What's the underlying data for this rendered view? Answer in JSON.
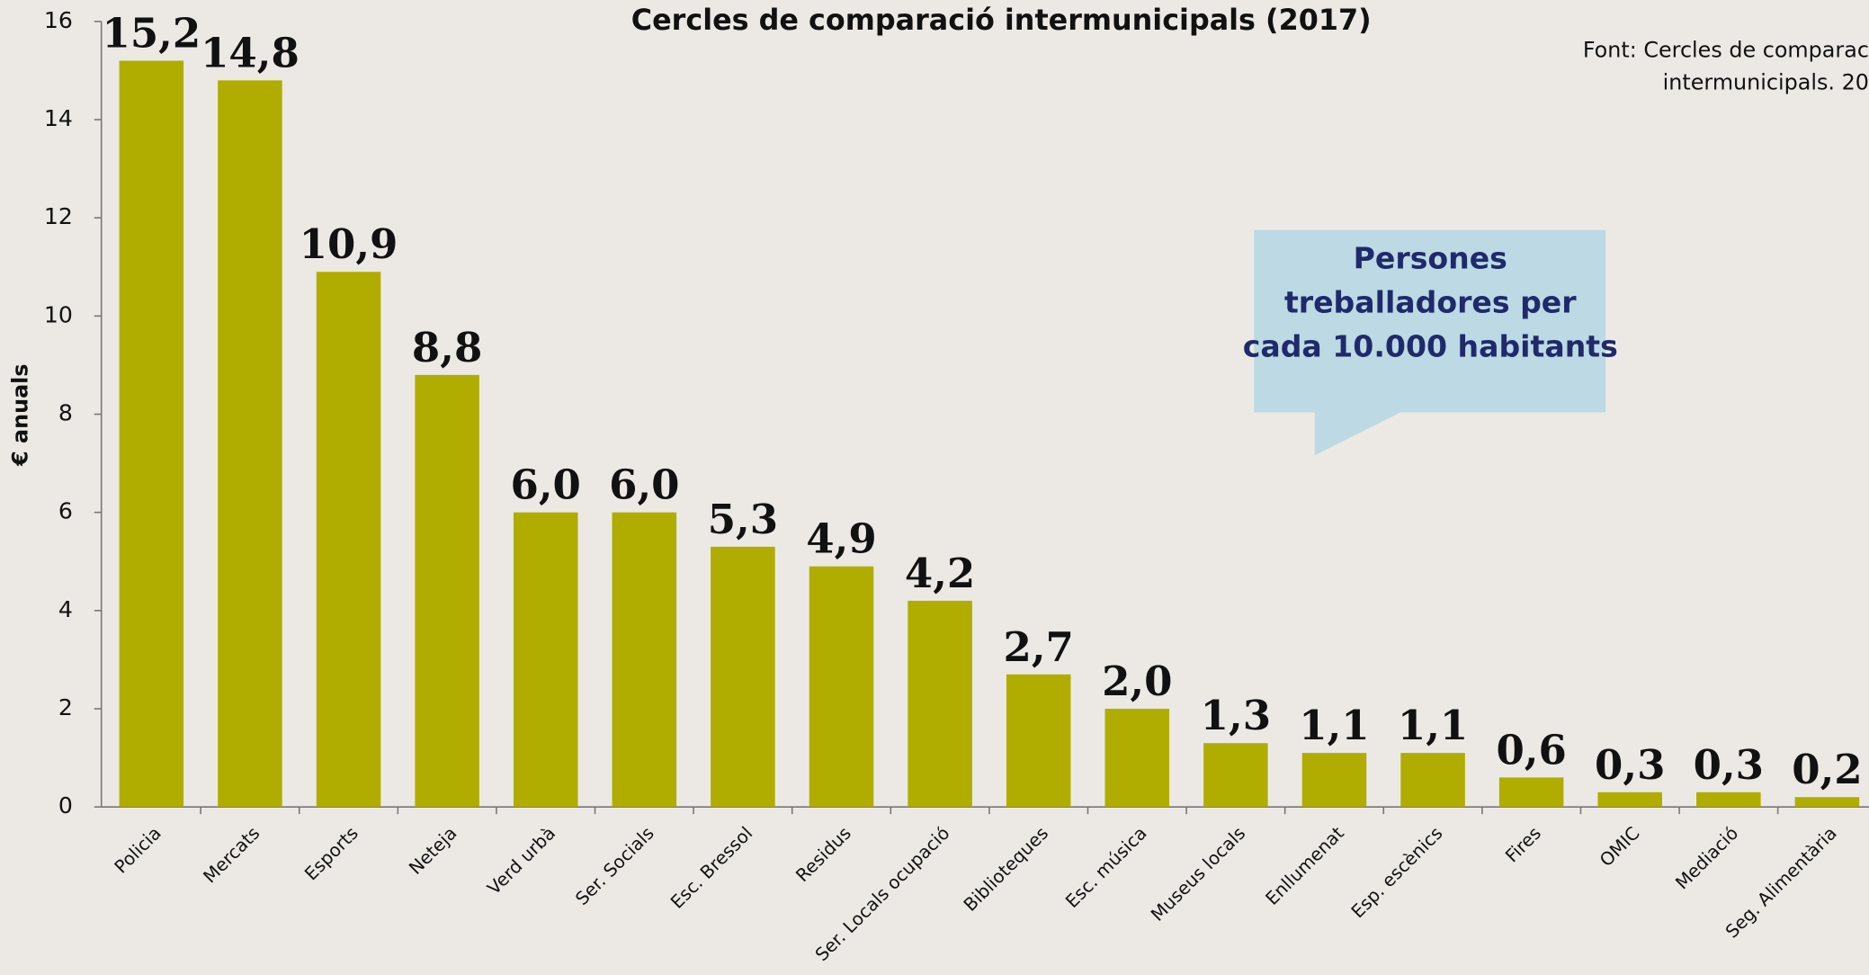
{
  "chart_data": {
    "type": "bar",
    "title": "Cercles de comparació intermunicipals (2017)",
    "y_label": "€ anuals",
    "source": [
      "Font: Cercles de comparac",
      "intermunicipals. 20"
    ],
    "callout": [
      "Persones",
      "treballadores per",
      "cada 10.000 habitants"
    ],
    "categories": [
      "Policia",
      "Mercats",
      "Esports",
      "Neteja",
      "Verd urbà",
      "Ser. Socials",
      "Esc. Bressol",
      "Residus",
      "Ser. Locals ocupació",
      "Biblioteques",
      "Esc. música",
      "Museus locals",
      "Enllumenat",
      "Esp. escènics",
      "Fires",
      "OMIC",
      "Mediació",
      "Seg. Alimentària"
    ],
    "values": [
      15.2,
      14.8,
      10.9,
      8.8,
      6.0,
      6.0,
      5.3,
      4.9,
      4.2,
      2.7,
      2.0,
      1.3,
      1.1,
      1.1,
      0.6,
      0.3,
      0.3,
      0.2
    ],
    "value_labels": [
      "15,2",
      "14,8",
      "10,9",
      "8,8",
      "6,0",
      "6,0",
      "5,3",
      "4,9",
      "4,2",
      "2,7",
      "2,0",
      "1,3",
      "1,1",
      "1,1",
      "0,6",
      "0,3",
      "0,3",
      "0,2"
    ],
    "color": "#b0ad00",
    "ylim": [
      0,
      16
    ],
    "yticks": [
      0,
      2,
      4,
      6,
      8,
      10,
      12,
      14,
      16
    ]
  }
}
